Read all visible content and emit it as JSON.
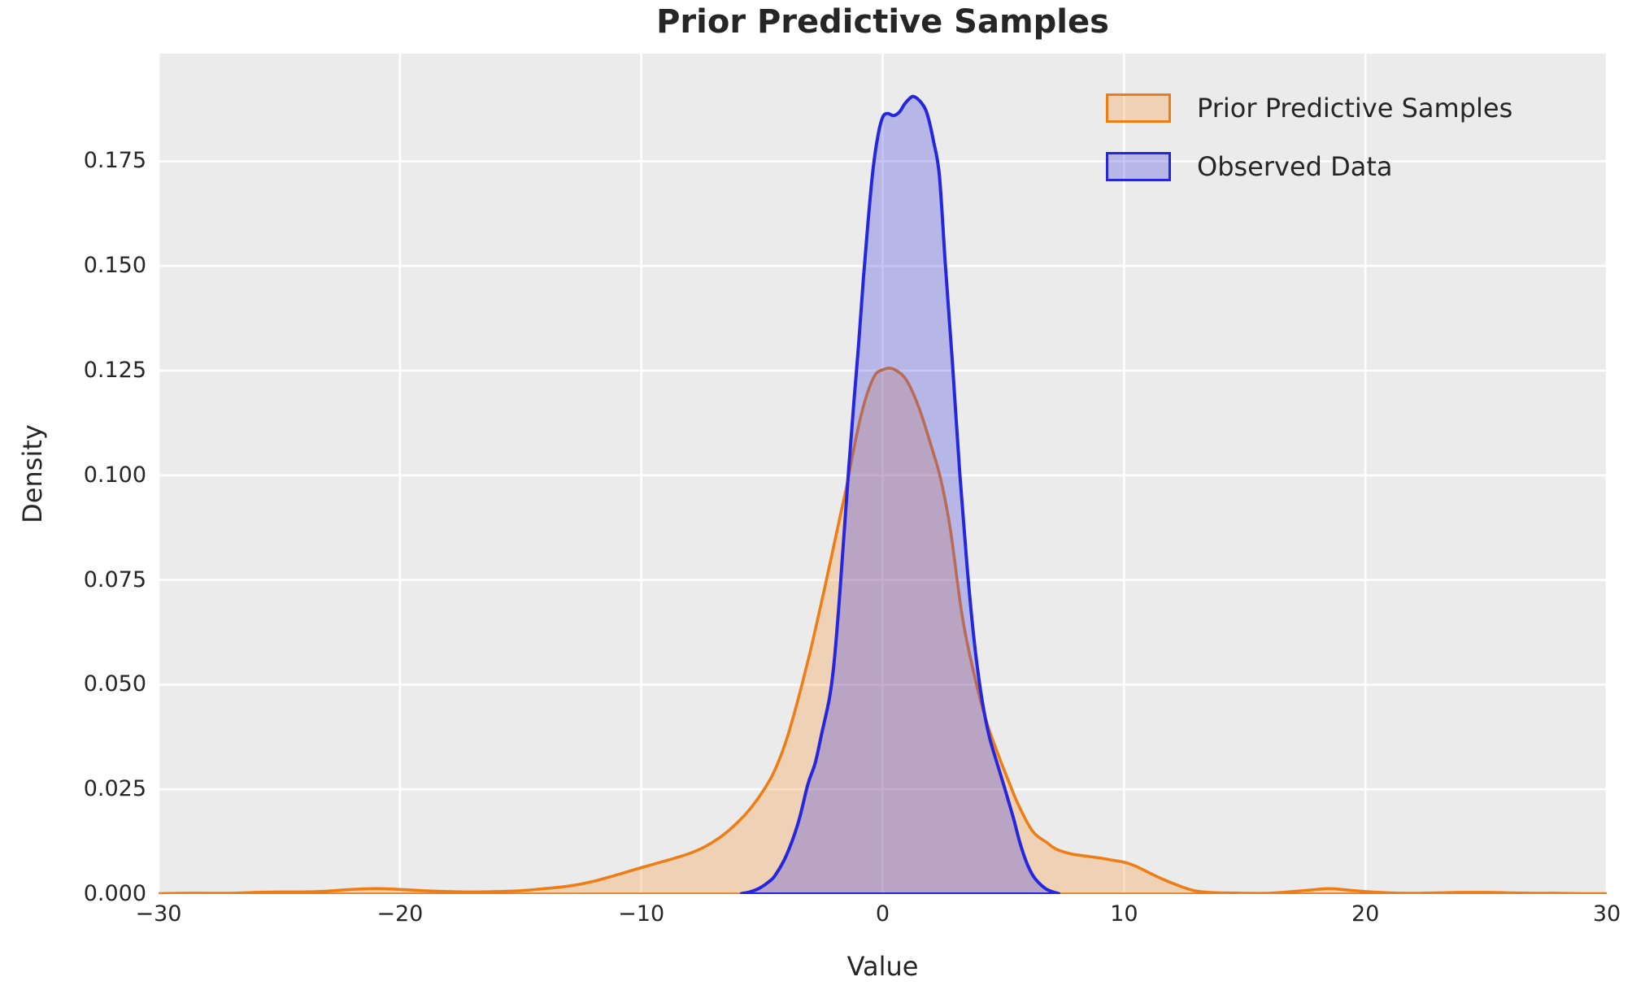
{
  "title": "Prior Predictive Samples",
  "axes": {
    "xlabel": "Value",
    "ylabel": "Density",
    "x_ticks": [
      "−30",
      "−20",
      "−10",
      "0",
      "10",
      "20",
      "30"
    ],
    "y_ticks": [
      "0.000",
      "0.025",
      "0.050",
      "0.075",
      "0.100",
      "0.125",
      "0.150",
      "0.175"
    ]
  },
  "legend": {
    "items": [
      {
        "label": "Prior Predictive Samples"
      },
      {
        "label": "Observed Data"
      }
    ]
  },
  "colors": {
    "figure_background": "#ffffff",
    "plot_background": "#ebebeb",
    "grid": "#ffffff",
    "text": "#262626",
    "orange_line": "#ef7d16",
    "orange_fill": "rgba(247,149,58,0.30)",
    "blue_line": "#2626df",
    "blue_fill": "rgba(70,70,225,0.32)"
  },
  "chart_data": {
    "type": "area",
    "subtype": "kde-density",
    "title": "Prior Predictive Samples",
    "xlabel": "Value",
    "ylabel": "Density",
    "xlim": [
      -30,
      30
    ],
    "ylim": [
      0,
      0.2007
    ],
    "x_tick_values": [
      -30,
      -20,
      -10,
      0,
      10,
      20,
      30
    ],
    "y_tick_values": [
      0,
      0.025,
      0.05,
      0.075,
      0.1,
      0.125,
      0.15,
      0.175
    ],
    "grid": true,
    "legend_position": "upper right",
    "series": [
      {
        "name": "Prior Predictive Samples",
        "line_color": "#ef7d16",
        "fill_color": "rgba(247,149,58,0.30)",
        "line_width": 3.6,
        "peak": {
          "x": 0.3,
          "density": 0.1256
        },
        "points": [
          [
            -30,
            0.0001
          ],
          [
            -29,
            0.0002
          ],
          [
            -28,
            0.0002
          ],
          [
            -27,
            0.0002
          ],
          [
            -26,
            0.0004
          ],
          [
            -25,
            0.0005
          ],
          [
            -24,
            0.0005
          ],
          [
            -23,
            0.0007
          ],
          [
            -22,
            0.0011
          ],
          [
            -21,
            0.0013
          ],
          [
            -20,
            0.0011
          ],
          [
            -19,
            0.0008
          ],
          [
            -18,
            0.0006
          ],
          [
            -17,
            0.0005
          ],
          [
            -16,
            0.0006
          ],
          [
            -15,
            0.0008
          ],
          [
            -14,
            0.0013
          ],
          [
            -13,
            0.0019
          ],
          [
            -12,
            0.003
          ],
          [
            -11,
            0.0046
          ],
          [
            -10,
            0.0063
          ],
          [
            -9.2,
            0.0076
          ],
          [
            -8.6,
            0.0086
          ],
          [
            -8,
            0.0097
          ],
          [
            -7.4,
            0.0112
          ],
          [
            -6.8,
            0.0133
          ],
          [
            -6.2,
            0.0161
          ],
          [
            -5.6,
            0.0196
          ],
          [
            -5,
            0.0242
          ],
          [
            -4.5,
            0.0292
          ],
          [
            -4,
            0.0366
          ],
          [
            -3.5,
            0.0466
          ],
          [
            -3,
            0.058
          ],
          [
            -2.7,
            0.0655
          ],
          [
            -2.4,
            0.0732
          ],
          [
            -2.1,
            0.0812
          ],
          [
            -1.8,
            0.0892
          ],
          [
            -1.5,
            0.0972
          ],
          [
            -1.2,
            0.1062
          ],
          [
            -0.9,
            0.1142
          ],
          [
            -0.6,
            0.1202
          ],
          [
            -0.3,
            0.1241
          ],
          [
            0,
            0.1252
          ],
          [
            0.3,
            0.1256
          ],
          [
            0.6,
            0.1249
          ],
          [
            1,
            0.1226
          ],
          [
            1.5,
            0.1162
          ],
          [
            2,
            0.1072
          ],
          [
            2.4,
            0.0992
          ],
          [
            2.8,
            0.0872
          ],
          [
            3.3,
            0.0662
          ],
          [
            3.8,
            0.0522
          ],
          [
            4.3,
            0.0412
          ],
          [
            4.8,
            0.0331
          ],
          [
            5.2,
            0.0272
          ],
          [
            5.6,
            0.0216
          ],
          [
            6.2,
            0.0151
          ],
          [
            6.8,
            0.0123
          ],
          [
            7.2,
            0.0107
          ],
          [
            7.8,
            0.0096
          ],
          [
            8.5,
            0.009
          ],
          [
            9,
            0.0086
          ],
          [
            9.5,
            0.0081
          ],
          [
            10,
            0.0076
          ],
          [
            10.5,
            0.0066
          ],
          [
            11,
            0.0052
          ],
          [
            11.5,
            0.0038
          ],
          [
            12,
            0.0026
          ],
          [
            12.5,
            0.0015
          ],
          [
            13,
            0.0007
          ],
          [
            13.5,
            0.0004
          ],
          [
            14,
            0.0003
          ],
          [
            15,
            0.0002
          ],
          [
            16,
            0.0002
          ],
          [
            17,
            0.0006
          ],
          [
            18,
            0.0011
          ],
          [
            18.5,
            0.0013
          ],
          [
            19,
            0.0011
          ],
          [
            20,
            0.0006
          ],
          [
            21,
            0.0003
          ],
          [
            22,
            0.0002
          ],
          [
            23,
            0.0003
          ],
          [
            24,
            0.0004
          ],
          [
            25,
            0.0004
          ],
          [
            26,
            0.0003
          ],
          [
            27,
            0.0002
          ],
          [
            28,
            0.0002
          ],
          [
            29,
            0.0001
          ],
          [
            30,
            0.0001
          ]
        ]
      },
      {
        "name": "Observed Data",
        "line_color": "#2626df",
        "fill_color": "rgba(70,70,225,0.32)",
        "line_width": 4,
        "peak": {
          "x": 1.25,
          "density": 0.1905
        },
        "points": [
          [
            -5.85,
            0.0001
          ],
          [
            -5.5,
            0.0005
          ],
          [
            -5.1,
            0.0014
          ],
          [
            -4.7,
            0.003
          ],
          [
            -4.45,
            0.0045
          ],
          [
            -4.0,
            0.0091
          ],
          [
            -3.5,
            0.017
          ],
          [
            -3.1,
            0.0262
          ],
          [
            -2.8,
            0.0312
          ],
          [
            -2.5,
            0.039
          ],
          [
            -2.2,
            0.047
          ],
          [
            -2.0,
            0.056
          ],
          [
            -1.8,
            0.07
          ],
          [
            -1.6,
            0.086
          ],
          [
            -1.4,
            0.102
          ],
          [
            -1.2,
            0.117
          ],
          [
            -1.0,
            0.131
          ],
          [
            -0.8,
            0.147
          ],
          [
            -0.6,
            0.161
          ],
          [
            -0.4,
            0.173
          ],
          [
            -0.2,
            0.181
          ],
          [
            0,
            0.1855
          ],
          [
            0.2,
            0.1864
          ],
          [
            0.45,
            0.1859
          ],
          [
            0.7,
            0.1868
          ],
          [
            0.9,
            0.1886
          ],
          [
            1.1,
            0.1899
          ],
          [
            1.25,
            0.1905
          ],
          [
            1.45,
            0.1899
          ],
          [
            1.65,
            0.1886
          ],
          [
            1.85,
            0.1862
          ],
          [
            2.1,
            0.18
          ],
          [
            2.35,
            0.1715
          ],
          [
            2.6,
            0.15
          ],
          [
            2.9,
            0.126
          ],
          [
            3.2,
            0.1
          ],
          [
            3.5,
            0.078
          ],
          [
            3.8,
            0.06
          ],
          [
            4.1,
            0.047
          ],
          [
            4.4,
            0.038
          ],
          [
            4.7,
            0.032
          ],
          [
            5.06,
            0.0252
          ],
          [
            5.4,
            0.0185
          ],
          [
            5.7,
            0.012
          ],
          [
            6.0,
            0.007
          ],
          [
            6.3,
            0.0038
          ],
          [
            6.7,
            0.0015
          ],
          [
            7.0,
            0.0006
          ],
          [
            7.3,
            0.0001
          ]
        ]
      }
    ]
  }
}
